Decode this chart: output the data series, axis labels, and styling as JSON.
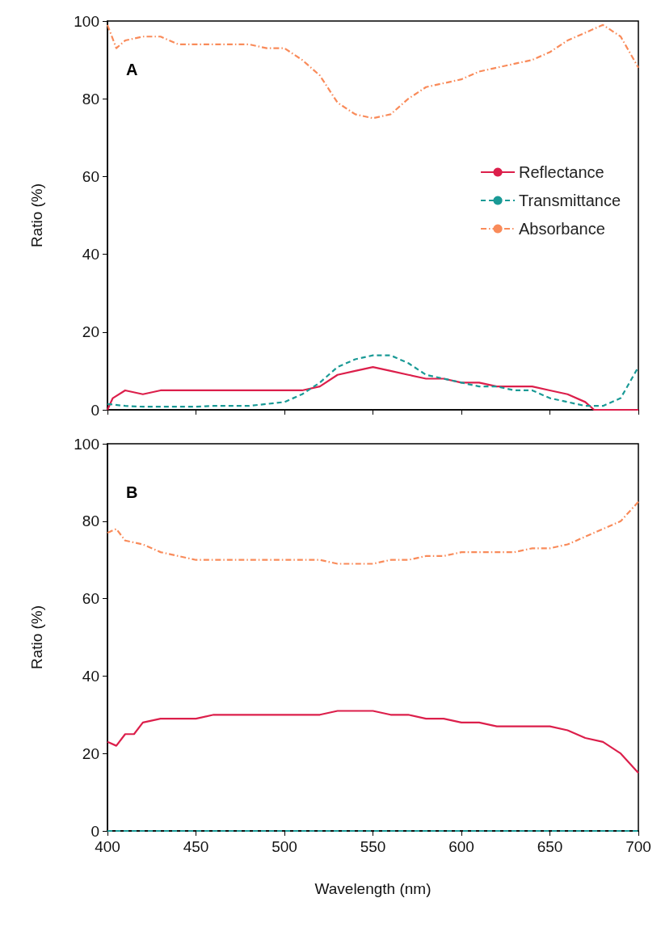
{
  "chart_data": [
    {
      "type": "line",
      "title": "A",
      "ylabel": "Ratio (%)",
      "xlim": [
        400,
        700
      ],
      "xticks": [
        400,
        450,
        500,
        550,
        600,
        650,
        700
      ],
      "ylim": [
        0,
        100
      ],
      "yticks": [
        0,
        20,
        40,
        60,
        80,
        100
      ],
      "grid": false,
      "legend": "right",
      "marker": "none",
      "tick_labels": "y",
      "series": [
        {
          "name": "Reflectance",
          "color": "#dc1f4b",
          "line_style": "solid",
          "x": [
            400,
            403,
            410,
            420,
            430,
            440,
            450,
            460,
            470,
            480,
            490,
            500,
            510,
            520,
            530,
            540,
            550,
            560,
            570,
            580,
            590,
            600,
            610,
            620,
            630,
            640,
            650,
            660,
            670,
            675,
            700
          ],
          "values": [
            0,
            3,
            5,
            4,
            5,
            5,
            5,
            5,
            5,
            5,
            5,
            5,
            5,
            6,
            9,
            10,
            11,
            10,
            9,
            8,
            8,
            7,
            7,
            6,
            6,
            6,
            5,
            4,
            2,
            0,
            0
          ]
        },
        {
          "name": "Transmittance",
          "color": "#1a9a96",
          "line_style": "dashed",
          "x": [
            400,
            410,
            420,
            430,
            440,
            450,
            460,
            470,
            480,
            490,
            500,
            510,
            520,
            530,
            540,
            550,
            560,
            570,
            580,
            590,
            600,
            610,
            620,
            630,
            640,
            650,
            660,
            670,
            680,
            690,
            700
          ],
          "values": [
            1.5,
            1,
            0.8,
            0.8,
            0.8,
            0.8,
            1,
            1,
            1,
            1.5,
            2,
            4,
            7,
            11,
            13,
            14,
            14,
            12,
            9,
            8,
            7,
            6,
            6,
            5,
            5,
            3,
            2,
            1,
            1,
            3,
            11
          ]
        },
        {
          "name": "Absorbance",
          "color": "#f98b5a",
          "line_style": "dashdot",
          "x": [
            400,
            405,
            410,
            420,
            430,
            440,
            450,
            460,
            470,
            480,
            490,
            500,
            510,
            520,
            530,
            540,
            550,
            560,
            570,
            580,
            590,
            600,
            610,
            620,
            630,
            640,
            650,
            660,
            670,
            680,
            690,
            700
          ],
          "values": [
            99,
            93,
            95,
            96,
            96,
            94,
            94,
            94,
            94,
            94,
            93,
            93,
            90,
            86,
            79,
            76,
            75,
            76,
            80,
            83,
            84,
            85,
            87,
            88,
            89,
            90,
            92,
            95,
            97,
            99,
            96,
            88
          ]
        }
      ]
    },
    {
      "type": "line",
      "title": "B",
      "xlabel": "Wavelength (nm)",
      "ylabel": "Ratio (%)",
      "xlim": [
        400,
        700
      ],
      "xticks": [
        400,
        450,
        500,
        550,
        600,
        650,
        700
      ],
      "ylim": [
        0,
        100
      ],
      "yticks": [
        0,
        20,
        40,
        60,
        80,
        100
      ],
      "grid": false,
      "legend": false,
      "marker": "none",
      "series": [
        {
          "color": "#dc1f4b",
          "line_style": "solid",
          "x": [
            400,
            405,
            410,
            415,
            420,
            430,
            440,
            450,
            460,
            470,
            480,
            490,
            500,
            510,
            520,
            530,
            540,
            550,
            560,
            570,
            580,
            590,
            600,
            610,
            620,
            630,
            640,
            650,
            660,
            670,
            680,
            690,
            700
          ],
          "values": [
            23,
            22,
            25,
            25,
            28,
            29,
            29,
            29,
            30,
            30,
            30,
            30,
            30,
            30,
            30,
            31,
            31,
            31,
            30,
            30,
            29,
            29,
            28,
            28,
            27,
            27,
            27,
            27,
            26,
            24,
            23,
            20,
            15
          ]
        },
        {
          "color": "#1a9a96",
          "line_style": "dashed",
          "x": [
            400,
            700
          ],
          "values": [
            0,
            0
          ]
        },
        {
          "color": "#f98b5a",
          "line_style": "dashdot",
          "x": [
            400,
            405,
            410,
            420,
            430,
            440,
            450,
            460,
            470,
            480,
            490,
            500,
            510,
            520,
            530,
            540,
            550,
            560,
            570,
            580,
            590,
            600,
            610,
            620,
            630,
            640,
            650,
            660,
            670,
            680,
            690,
            700
          ],
          "values": [
            77,
            78,
            75,
            74,
            72,
            71,
            70,
            70,
            70,
            70,
            70,
            70,
            70,
            70,
            69,
            69,
            69,
            70,
            70,
            71,
            71,
            72,
            72,
            72,
            72,
            73,
            73,
            74,
            76,
            78,
            80,
            85
          ]
        }
      ]
    }
  ]
}
